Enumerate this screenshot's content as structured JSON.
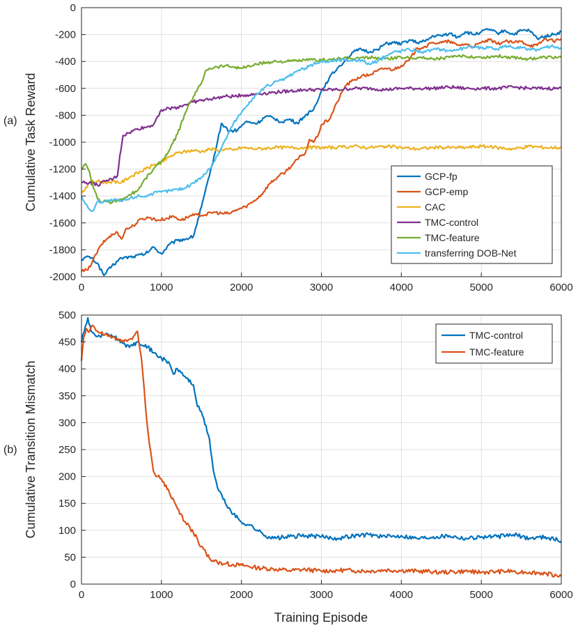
{
  "colors": {
    "blue": "#0072BD",
    "orange": "#D95319",
    "yellow": "#EDB120",
    "purple": "#7E2F8E",
    "green": "#77AC30",
    "cyan": "#4DBEEE"
  },
  "chart_data": [
    {
      "type": "line",
      "panel_label": "(a)",
      "title": "",
      "xlabel": "",
      "ylabel": "Cumulative Task Reward",
      "xlim": [
        0,
        6000
      ],
      "ylim": [
        -2000,
        0
      ],
      "xticks": [
        0,
        1000,
        2000,
        3000,
        4000,
        5000,
        6000
      ],
      "xtick_labels": [
        "0",
        "1000",
        "2000",
        "3000",
        "4000",
        "5000",
        "6000"
      ],
      "yticks": [
        0,
        -200,
        -400,
        -600,
        -800,
        -1000,
        -1200,
        -1400,
        -1600,
        -1800,
        -2000
      ],
      "ytick_labels": [
        "0",
        "-200",
        "-400",
        "-600",
        "-800",
        "-1000",
        "-1200",
        "-1400",
        "-1600",
        "-1800",
        "-2000"
      ],
      "grid": true,
      "legend_position": "bottom-right",
      "series": [
        {
          "name": "GCP-fp",
          "color": "#0072BD",
          "x": [
            0,
            100,
            200,
            280,
            380,
            500,
            650,
            800,
            900,
            1000,
            1100,
            1200,
            1300,
            1400,
            1500,
            1600,
            1700,
            1750,
            1850,
            1950,
            2050,
            2200,
            2300,
            2400,
            2500,
            2600,
            2700,
            2800,
            2900,
            3000,
            3100,
            3200,
            3300,
            3400,
            3500,
            3600,
            3700,
            3800,
            3900,
            4000,
            4100,
            4200,
            4300,
            4400,
            4500,
            4600,
            4700,
            4800,
            4900,
            5000,
            5100,
            5200,
            5300,
            5400,
            5500,
            5600,
            5700,
            5800,
            5900,
            6000
          ],
          "y": [
            -1870,
            -1850,
            -1900,
            -1990,
            -1920,
            -1860,
            -1850,
            -1830,
            -1780,
            -1830,
            -1760,
            -1730,
            -1720,
            -1700,
            -1480,
            -1250,
            -1000,
            -860,
            -920,
            -910,
            -850,
            -860,
            -810,
            -820,
            -850,
            -830,
            -860,
            -800,
            -760,
            -620,
            -520,
            -450,
            -390,
            -330,
            -310,
            -330,
            -310,
            -270,
            -260,
            -270,
            -240,
            -260,
            -250,
            -210,
            -210,
            -190,
            -220,
            -180,
            -200,
            -180,
            -160,
            -190,
            -170,
            -200,
            -170,
            -170,
            -230,
            -210,
            -200,
            -180
          ]
        },
        {
          "name": "GCP-emp",
          "color": "#D95319",
          "x": [
            0,
            80,
            150,
            250,
            350,
            450,
            500,
            550,
            650,
            750,
            850,
            950,
            1050,
            1150,
            1250,
            1350,
            1450,
            1550,
            1650,
            1750,
            1850,
            1950,
            2050,
            2150,
            2250,
            2350,
            2450,
            2550,
            2650,
            2750,
            2800,
            2850,
            2900,
            2950,
            3000,
            3100,
            3200,
            3300,
            3400,
            3500,
            3600,
            3700,
            3800,
            3900,
            4000,
            4100,
            4200,
            4300,
            4400,
            4500,
            4600,
            4700,
            4800,
            4900,
            5000,
            5100,
            5200,
            5300,
            5400,
            5500,
            5600,
            5700,
            5800,
            5900,
            6000
          ],
          "y": [
            -1960,
            -1950,
            -1870,
            -1760,
            -1700,
            -1670,
            -1720,
            -1650,
            -1620,
            -1570,
            -1560,
            -1580,
            -1570,
            -1550,
            -1580,
            -1550,
            -1540,
            -1540,
            -1520,
            -1530,
            -1530,
            -1500,
            -1480,
            -1440,
            -1390,
            -1310,
            -1260,
            -1220,
            -1160,
            -1100,
            -1080,
            -980,
            -1000,
            -960,
            -870,
            -830,
            -700,
            -580,
            -540,
            -510,
            -500,
            -470,
            -450,
            -460,
            -430,
            -390,
            -300,
            -290,
            -260,
            -260,
            -250,
            -280,
            -270,
            -290,
            -260,
            -240,
            -270,
            -250,
            -260,
            -250,
            -280,
            -280,
            -230,
            -250,
            -230
          ]
        },
        {
          "name": "CAC",
          "color": "#EDB120",
          "x": [
            0,
            100,
            200,
            300,
            400,
            500,
            600,
            700,
            800,
            900,
            1000,
            1100,
            1200,
            1300,
            1400,
            1500,
            1600,
            1700,
            1800,
            1900,
            2000,
            2200,
            2400,
            2600,
            2800,
            3000,
            3200,
            3400,
            3600,
            3800,
            4000,
            4200,
            4400,
            4600,
            4800,
            5000,
            5200,
            5400,
            5600,
            5800,
            6000
          ],
          "y": [
            -1380,
            -1300,
            -1290,
            -1300,
            -1290,
            -1300,
            -1260,
            -1230,
            -1200,
            -1170,
            -1150,
            -1110,
            -1080,
            -1070,
            -1060,
            -1070,
            -1050,
            -1060,
            -1050,
            -1060,
            -1040,
            -1050,
            -1040,
            -1040,
            -1040,
            -1040,
            -1040,
            -1030,
            -1040,
            -1030,
            -1040,
            -1050,
            -1040,
            -1040,
            -1040,
            -1030,
            -1040,
            -1050,
            -1030,
            -1040,
            -1040
          ]
        },
        {
          "name": "TMC-control",
          "color": "#7E2F8E",
          "x": [
            0,
            100,
            200,
            300,
            400,
            450,
            480,
            520,
            600,
            700,
            800,
            900,
            950,
            1000,
            1100,
            1200,
            1300,
            1400,
            1500,
            1600,
            1700,
            1800,
            1900,
            2000,
            2100,
            2200,
            2400,
            2600,
            2800,
            3000,
            3200,
            3400,
            3600,
            3800,
            4000,
            4200,
            4400,
            4600,
            4800,
            5000,
            5200,
            5400,
            5600,
            5800,
            6000
          ],
          "y": [
            -1300,
            -1300,
            -1320,
            -1290,
            -1270,
            -1250,
            -1100,
            -950,
            -930,
            -900,
            -890,
            -870,
            -810,
            -760,
            -750,
            -740,
            -720,
            -700,
            -690,
            -680,
            -670,
            -660,
            -660,
            -650,
            -650,
            -640,
            -630,
            -620,
            -610,
            -610,
            -610,
            -600,
            -600,
            -610,
            -600,
            -600,
            -600,
            -590,
            -600,
            -600,
            -600,
            -590,
            -600,
            -600,
            -600
          ]
        },
        {
          "name": "TMC-feature",
          "color": "#77AC30",
          "x": [
            0,
            50,
            100,
            150,
            200,
            250,
            300,
            350,
            400,
            450,
            500,
            550,
            600,
            700,
            800,
            900,
            1000,
            1100,
            1200,
            1300,
            1400,
            1500,
            1550,
            1600,
            1700,
            1800,
            1900,
            2000,
            2200,
            2400,
            2600,
            2800,
            3000,
            3200,
            3400,
            3600,
            3800,
            4000,
            4200,
            4400,
            4600,
            4800,
            5000,
            5200,
            5400,
            5600,
            5800,
            6000
          ],
          "y": [
            -1200,
            -1160,
            -1220,
            -1340,
            -1420,
            -1450,
            -1430,
            -1450,
            -1440,
            -1430,
            -1430,
            -1410,
            -1390,
            -1360,
            -1270,
            -1200,
            -1140,
            -1060,
            -940,
            -780,
            -660,
            -560,
            -470,
            -450,
            -440,
            -430,
            -440,
            -450,
            -420,
            -400,
            -400,
            -390,
            -390,
            -380,
            -380,
            -370,
            -380,
            -370,
            -370,
            -380,
            -370,
            -360,
            -370,
            -360,
            -370,
            -380,
            -370,
            -370
          ]
        },
        {
          "name": "transferring DOB-Net",
          "color": "#4DBEEE",
          "x": [
            0,
            50,
            100,
            150,
            200,
            300,
            400,
            500,
            600,
            700,
            800,
            900,
            1000,
            1100,
            1200,
            1300,
            1400,
            1500,
            1600,
            1700,
            1800,
            1900,
            2000,
            2100,
            2200,
            2300,
            2400,
            2500,
            2600,
            2700,
            2800,
            2900,
            3000,
            3100,
            3200,
            3300,
            3400,
            3500,
            3600,
            3700,
            3800,
            3900,
            4000,
            4100,
            4200,
            4300,
            4400,
            4500,
            4600,
            4700,
            4800,
            4900,
            5000,
            5100,
            5200,
            5300,
            5400,
            5500,
            5600,
            5700,
            5800,
            5900,
            6000
          ],
          "y": [
            -1400,
            -1460,
            -1500,
            -1510,
            -1440,
            -1440,
            -1430,
            -1440,
            -1420,
            -1400,
            -1400,
            -1380,
            -1370,
            -1360,
            -1350,
            -1340,
            -1300,
            -1260,
            -1200,
            -1100,
            -980,
            -860,
            -780,
            -700,
            -640,
            -590,
            -560,
            -540,
            -510,
            -470,
            -450,
            -420,
            -400,
            -400,
            -390,
            -390,
            -390,
            -390,
            -420,
            -400,
            -360,
            -330,
            -320,
            -310,
            -320,
            -330,
            -310,
            -310,
            -320,
            -310,
            -300,
            -290,
            -300,
            -290,
            -310,
            -280,
            -300,
            -300,
            -310,
            -310,
            -290,
            -290,
            -300
          ]
        }
      ]
    },
    {
      "type": "line",
      "panel_label": "(b)",
      "title": "",
      "xlabel": "Training Episode",
      "ylabel": "Cumulative Transition Mismatch",
      "xlim": [
        0,
        6000
      ],
      "ylim": [
        0,
        500
      ],
      "xticks": [
        0,
        1000,
        2000,
        3000,
        4000,
        5000,
        6000
      ],
      "xtick_labels": [
        "0",
        "1000",
        "2000",
        "3000",
        "4000",
        "5000",
        "6000"
      ],
      "yticks": [
        0,
        50,
        100,
        150,
        200,
        250,
        300,
        350,
        400,
        450,
        500
      ],
      "ytick_labels": [
        "0",
        "50",
        "100",
        "150",
        "200",
        "250",
        "300",
        "350",
        "400",
        "450",
        "500"
      ],
      "grid": true,
      "legend_position": "top-right",
      "series": [
        {
          "name": "TMC-control",
          "color": "#0072BD",
          "x": [
            0,
            50,
            80,
            120,
            200,
            300,
            400,
            500,
            600,
            700,
            800,
            900,
            1000,
            1100,
            1150,
            1200,
            1300,
            1400,
            1450,
            1500,
            1600,
            1650,
            1700,
            1800,
            1900,
            2000,
            2100,
            2200,
            2300,
            2400,
            2600,
            2800,
            3000,
            3200,
            3400,
            3600,
            3800,
            4000,
            4200,
            4400,
            4600,
            4800,
            5000,
            5200,
            5400,
            5600,
            5800,
            6000
          ],
          "y": [
            450,
            480,
            495,
            470,
            460,
            465,
            460,
            450,
            440,
            450,
            445,
            430,
            420,
            410,
            390,
            400,
            385,
            370,
            330,
            320,
            270,
            210,
            180,
            150,
            130,
            115,
            110,
            100,
            90,
            85,
            88,
            90,
            88,
            85,
            90,
            92,
            88,
            90,
            85,
            88,
            90,
            85,
            88,
            88,
            92,
            85,
            88,
            80
          ]
        },
        {
          "name": "TMC-feature",
          "color": "#D95319",
          "x": [
            0,
            30,
            60,
            100,
            150,
            200,
            300,
            400,
            500,
            600,
            650,
            700,
            750,
            800,
            850,
            900,
            950,
            1000,
            1100,
            1200,
            1300,
            1400,
            1500,
            1600,
            1700,
            1800,
            1900,
            2000,
            2200,
            2400,
            2600,
            2800,
            3000,
            3200,
            3400,
            3600,
            3800,
            4000,
            4200,
            4400,
            4600,
            4800,
            5000,
            5200,
            5400,
            5600,
            5800,
            6000
          ],
          "y": [
            415,
            460,
            475,
            470,
            480,
            470,
            465,
            460,
            450,
            455,
            460,
            470,
            420,
            330,
            260,
            210,
            200,
            195,
            170,
            140,
            115,
            95,
            70,
            48,
            40,
            38,
            36,
            35,
            30,
            28,
            25,
            27,
            24,
            26,
            25,
            24,
            26,
            25,
            24,
            23,
            22,
            24,
            22,
            23,
            24,
            22,
            20,
            15
          ]
        }
      ]
    }
  ]
}
